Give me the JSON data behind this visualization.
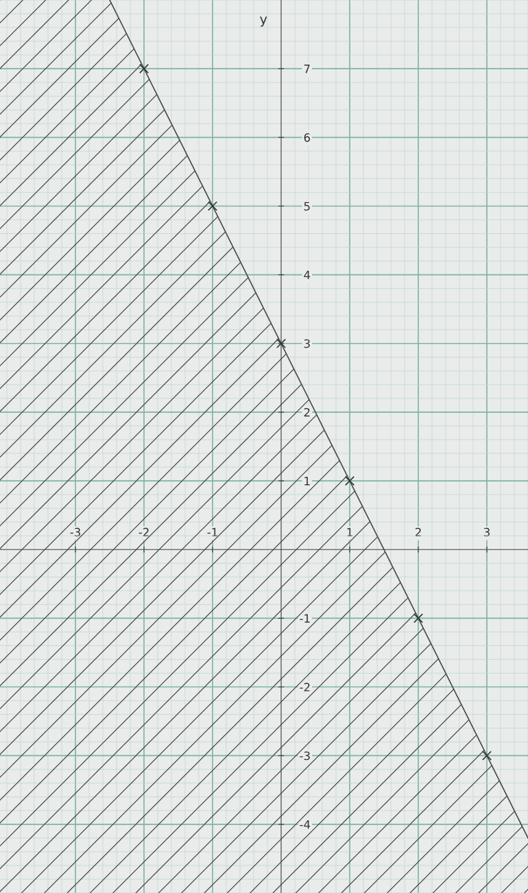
{
  "chart_data": {
    "type": "line",
    "ylabel": "y",
    "series": [
      {
        "color": "#4a4a4a",
        "x": [
          -4.1,
          -2.5,
          -2,
          -1,
          0,
          1,
          2,
          3,
          3.6
        ],
        "values": [
          null,
          8,
          7,
          5,
          3,
          1,
          -1,
          -3,
          -4.2
        ],
        "upper": [
          8,
          8,
          7,
          5,
          3,
          1,
          -1,
          -3,
          -4.2
        ],
        "lower": [
          -5,
          -5,
          -5,
          -5,
          -5,
          -5,
          -5,
          -5,
          -5
        ]
      },
      {
        "type": "scatter",
        "color": "#333333",
        "marker": "cross",
        "x": [
          -2,
          -1,
          0,
          1,
          2,
          3
        ],
        "values": [
          7,
          5,
          3,
          1,
          -1,
          -3
        ]
      }
    ],
    "xlim": [
      -4.1,
      3.6
    ],
    "ylim": [
      -5,
      8
    ],
    "xticks": [
      -3,
      -2,
      -1,
      1,
      2,
      3
    ],
    "yticks": [
      -4,
      -3,
      -2,
      -1,
      1,
      2,
      3,
      4,
      5,
      6,
      7
    ],
    "grid": true
  }
}
